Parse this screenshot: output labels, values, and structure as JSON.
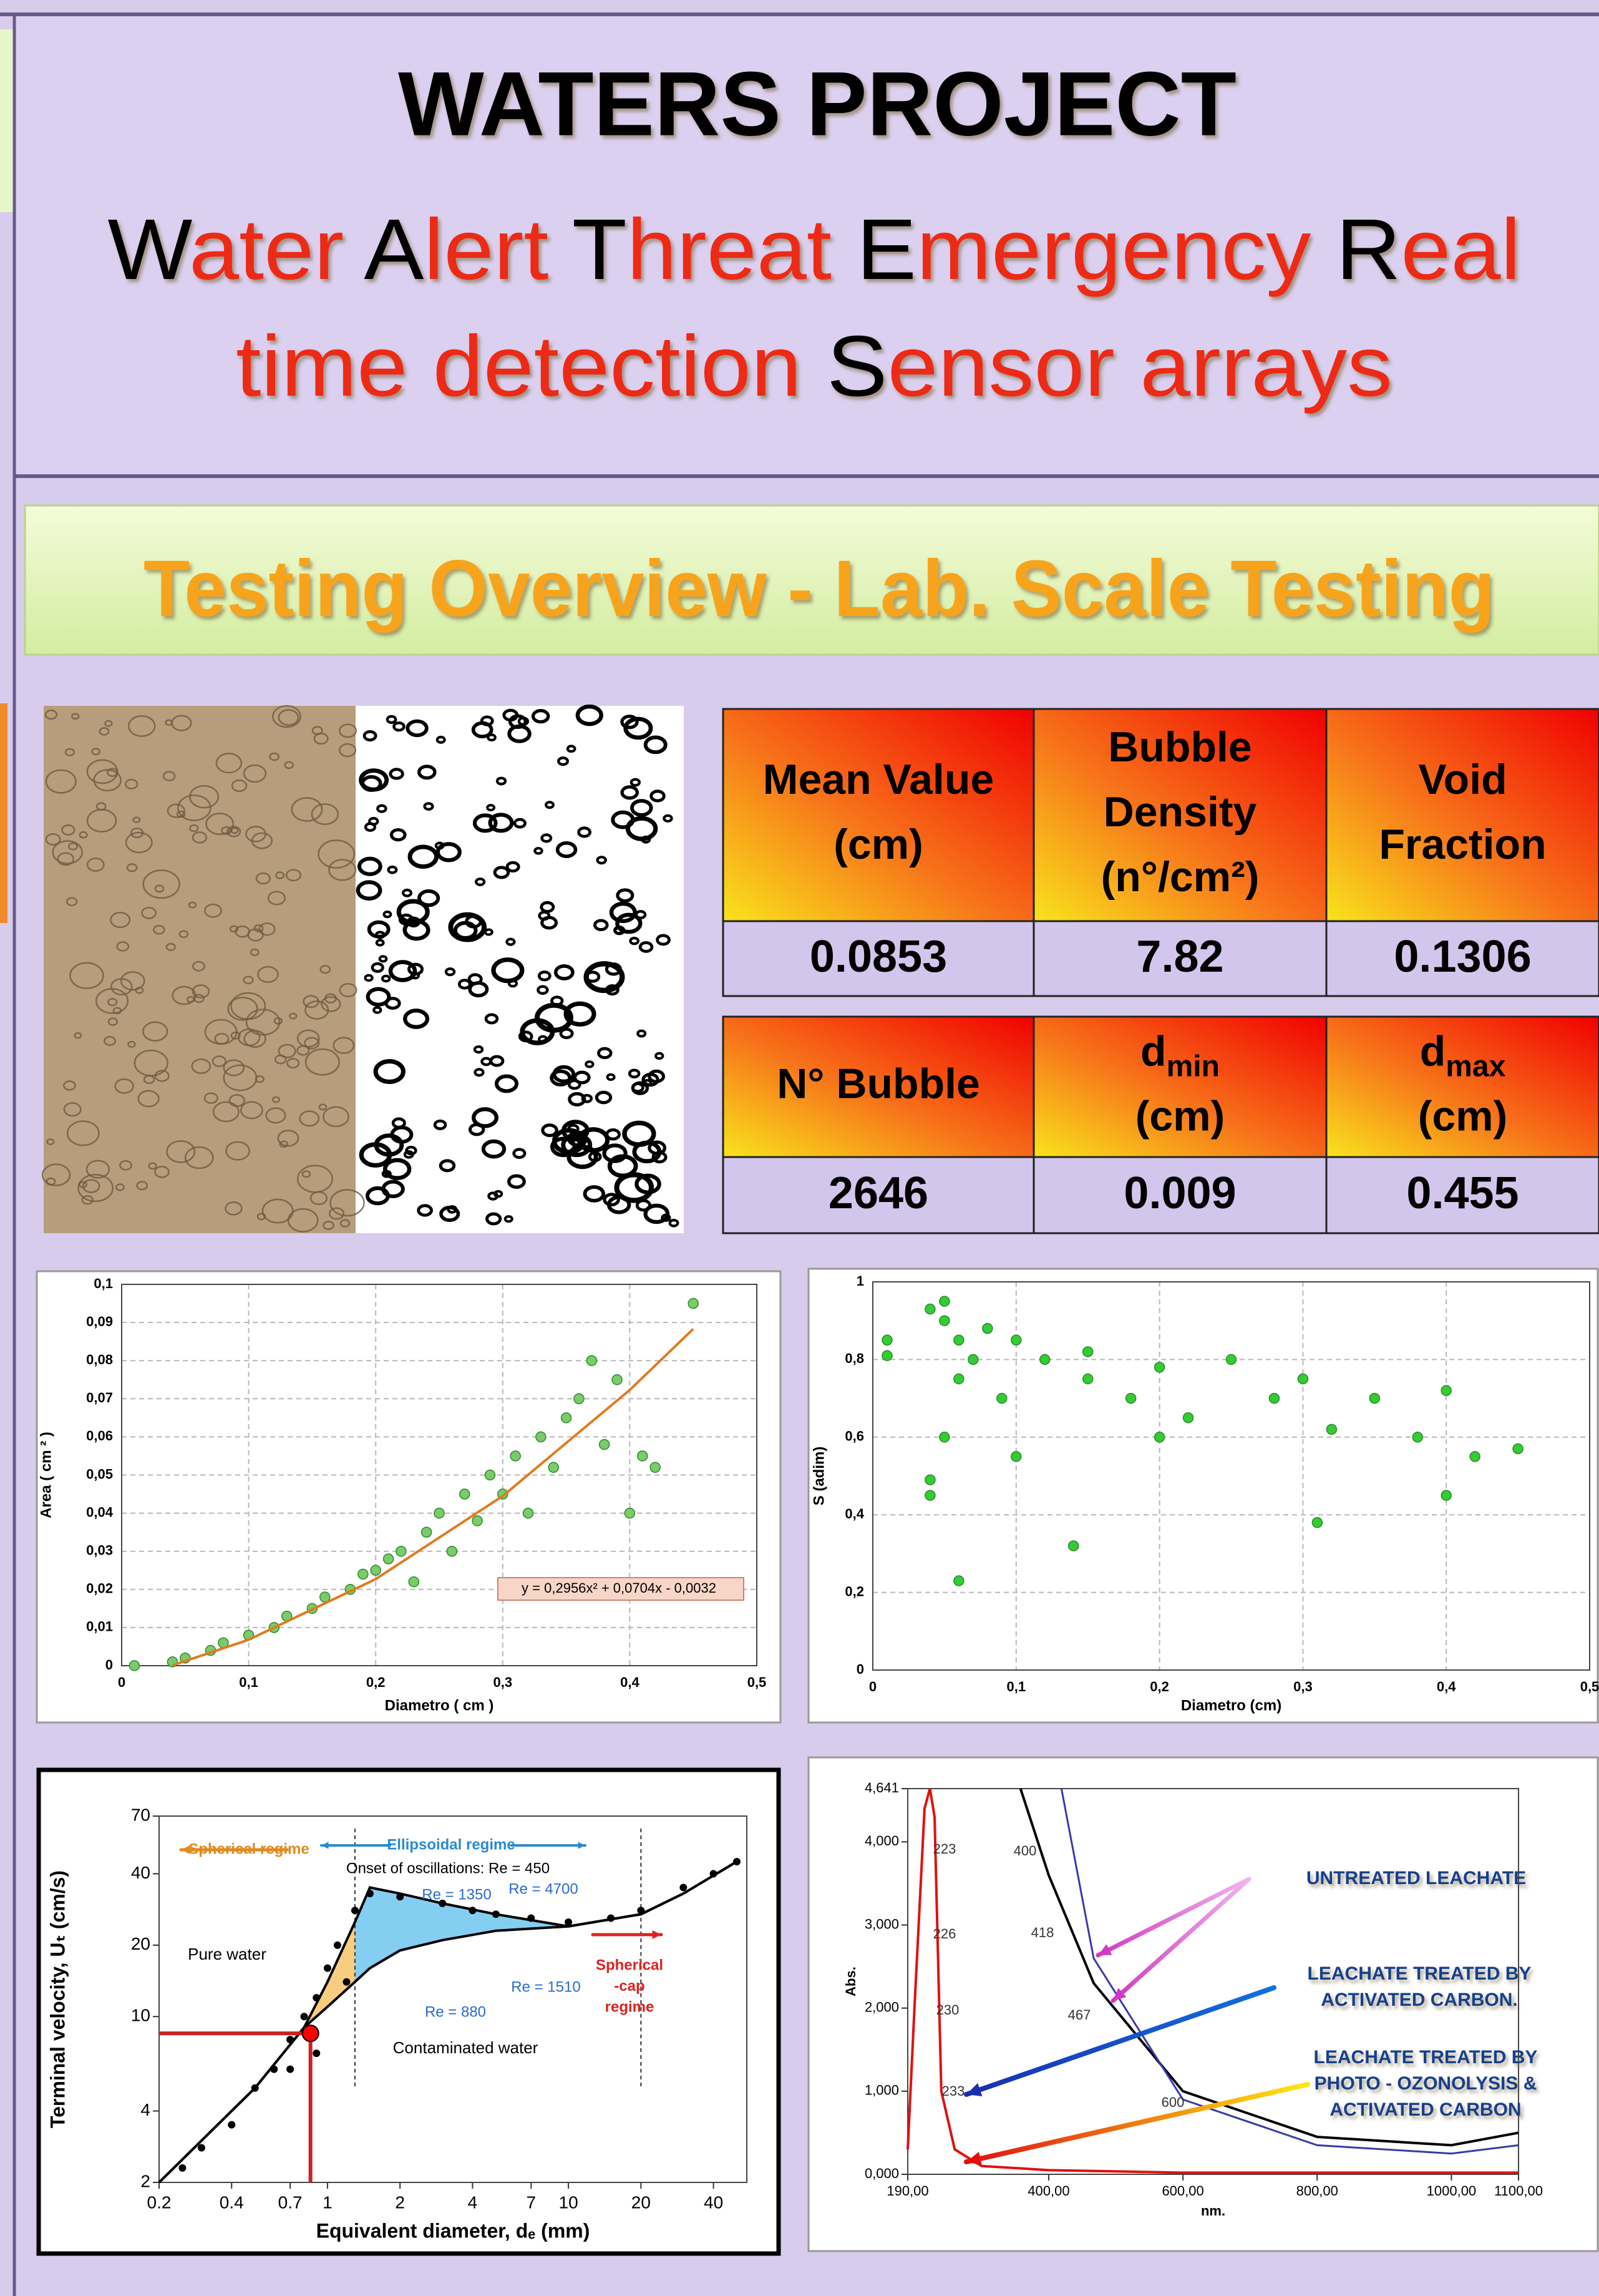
{
  "header": {
    "title": "WATERS PROJECT",
    "subtitle_lines": [
      [
        {
          "text": "W",
          "initial": true
        },
        {
          "text": "ater ",
          "initial": false
        },
        {
          "text": "A",
          "initial": true
        },
        {
          "text": "lert ",
          "initial": false
        },
        {
          "text": "T",
          "initial": true
        },
        {
          "text": "hreat ",
          "initial": false
        },
        {
          "text": "E",
          "initial": true
        },
        {
          "text": "mergency ",
          "initial": false
        },
        {
          "text": "R",
          "initial": true
        },
        {
          "text": "eal",
          "initial": false
        }
      ],
      [
        {
          "text": "time detection ",
          "initial": false
        },
        {
          "text": "S",
          "initial": true
        },
        {
          "text": "ensor arrays",
          "initial": false
        }
      ]
    ]
  },
  "banner": {
    "title": "Testing Overview - Lab. Scale Testing"
  },
  "table": {
    "blocks": [
      {
        "headers": [
          [
            "Mean Value",
            "(cm)"
          ],
          [
            "Bubble",
            "Density",
            "(n°/cm²)"
          ],
          [
            "Void",
            "Fraction"
          ]
        ],
        "values": [
          "0.0853",
          "7.82",
          "0.1306"
        ]
      },
      {
        "headers": [
          [
            "N° Bubble"
          ],
          [
            {
              "main": "d",
              "sub": "min"
            },
            "(cm)"
          ],
          [
            {
              "main": "d",
              "sub": "max"
            },
            "(cm)"
          ]
        ],
        "values": [
          "2646",
          "0.009",
          "0.455"
        ]
      }
    ]
  },
  "chart_data": [
    {
      "type": "scatter",
      "xlabel": "Diametro ( cm )",
      "ylabel": "Area ( cm ² )",
      "grid": true,
      "xlim": [
        0,
        0.5
      ],
      "ylim": [
        0,
        0.1
      ],
      "xticks": [
        0,
        {
          "value": 0.1,
          "label": "0,1"
        },
        {
          "value": 0.2,
          "label": "0,2"
        },
        {
          "value": 0.3,
          "label": "0,3"
        },
        {
          "value": 0.4,
          "label": "0,4"
        },
        {
          "value": 0.5,
          "label": "0,5"
        }
      ],
      "yticks": [
        0,
        {
          "value": 0.01,
          "label": "0,01"
        },
        {
          "value": 0.02,
          "label": "0,02"
        },
        {
          "value": 0.03,
          "label": "0,03"
        },
        {
          "value": 0.04,
          "label": "0,04"
        },
        {
          "value": 0.05,
          "label": "0,05"
        },
        {
          "value": 0.06,
          "label": "0,06"
        },
        {
          "value": 0.07,
          "label": "0,07"
        },
        {
          "value": 0.08,
          "label": "0,08"
        },
        {
          "value": 0.09,
          "label": "0,09"
        },
        {
          "value": 0.1,
          "label": "0,1"
        }
      ],
      "series": [
        {
          "style": "markers",
          "color": "#7ccb6a",
          "x": [
            0.01,
            0.04,
            0.05,
            0.07,
            0.08,
            0.1,
            0.12,
            0.13,
            0.15,
            0.16,
            0.18,
            0.19,
            0.2,
            0.21,
            0.22,
            0.23,
            0.24,
            0.25,
            0.26,
            0.27,
            0.28,
            0.29,
            0.3,
            0.31,
            0.32,
            0.33,
            0.34,
            0.35,
            0.36,
            0.37,
            0.38,
            0.39,
            0.4,
            0.41,
            0.42,
            0.45
          ],
          "values": [
            0,
            0.001,
            0.002,
            0.004,
            0.006,
            0.008,
            0.01,
            0.013,
            0.015,
            0.018,
            0.02,
            0.024,
            0.025,
            0.028,
            0.03,
            0.022,
            0.035,
            0.04,
            0.03,
            0.045,
            0.038,
            0.05,
            0.045,
            0.055,
            0.04,
            0.06,
            0.052,
            0.065,
            0.07,
            0.08,
            0.058,
            0.075,
            0.04,
            0.055,
            0.052,
            0.095
          ]
        },
        {
          "style": "line",
          "color": "#e07b20",
          "x": [
            0.04,
            0.1,
            0.2,
            0.3,
            0.4,
            0.45
          ],
          "values": [
            0.0001,
            0.0068,
            0.0227,
            0.0445,
            0.0723,
            0.0883
          ]
        }
      ],
      "annotations": [
        "y = 0,2956x² + 0,0704x - 0,0032"
      ]
    },
    {
      "type": "scatter",
      "xlabel": "Diametro (cm)",
      "ylabel": "S (adim)",
      "grid": true,
      "xlim": [
        0,
        0.5
      ],
      "ylim": [
        0,
        1
      ],
      "xticks": [
        0,
        {
          "value": 0.1,
          "label": "0,1"
        },
        {
          "value": 0.2,
          "label": "0,2"
        },
        {
          "value": 0.3,
          "label": "0,3"
        },
        {
          "value": 0.4,
          "label": "0,4"
        },
        {
          "value": 0.5,
          "label": "0,5"
        }
      ],
      "yticks": [
        0,
        {
          "value": 0.2,
          "label": "0,2"
        },
        {
          "value": 0.4,
          "label": "0,4"
        },
        {
          "value": 0.6,
          "label": "0,6"
        },
        {
          "value": 0.8,
          "label": "0,8"
        },
        1
      ],
      "series": [
        {
          "style": "markers",
          "color": "#33cc33",
          "x": [
            0.01,
            0.01,
            0.04,
            0.05,
            0.05,
            0.06,
            0.07,
            0.06,
            0.08,
            0.1,
            0.09,
            0.12,
            0.15,
            0.15,
            0.18,
            0.2,
            0.22,
            0.25,
            0.28,
            0.3,
            0.32,
            0.35,
            0.38,
            0.4,
            0.42,
            0.45,
            0.04,
            0.04,
            0.06,
            0.14,
            0.31,
            0.4,
            0.1,
            0.05,
            0.2
          ],
          "values": [
            0.85,
            0.81,
            0.93,
            0.95,
            0.9,
            0.85,
            0.8,
            0.75,
            0.88,
            0.85,
            0.7,
            0.8,
            0.75,
            0.82,
            0.7,
            0.78,
            0.65,
            0.8,
            0.7,
            0.75,
            0.62,
            0.7,
            0.6,
            0.72,
            0.55,
            0.57,
            0.45,
            0.49,
            0.23,
            0.32,
            0.38,
            0.45,
            0.55,
            0.6,
            0.6
          ]
        }
      ],
      "annotations": []
    },
    {
      "type": "line",
      "xscale": "log",
      "yscale": "log",
      "xlabel": "Equivalent diameter, dₑ (mm)",
      "ylabel": "Terminal velocity, Uₜ (cm/s)",
      "grid": false,
      "xlim": [
        0.2,
        55
      ],
      "ylim": [
        2,
        70
      ],
      "xticks": [
        0.2,
        0.4,
        0.7,
        1,
        2,
        4,
        7,
        10,
        20,
        40
      ],
      "yticks": [
        2,
        4,
        10,
        20,
        40,
        70
      ],
      "series": [
        {
          "style": "line",
          "color": "#000000",
          "x": [
            0.2,
            0.5,
            0.8,
            1,
            1.3,
            1.5,
            2,
            3,
            5,
            10,
            20,
            30,
            50
          ],
          "values": [
            2,
            5,
            9,
            14,
            25,
            35,
            33,
            30,
            27,
            24,
            27,
            33,
            45
          ]
        },
        {
          "style": "line",
          "color": "#000000",
          "x": [
            0.2,
            0.5,
            0.8,
            1,
            1.3,
            1.5,
            2,
            3,
            5,
            10,
            20,
            30,
            50
          ],
          "values": [
            2,
            5,
            9,
            11,
            14,
            16,
            19,
            21,
            23,
            24,
            27,
            33,
            45
          ]
        },
        {
          "style": "markers",
          "color": "#000000",
          "x": [
            0.25,
            0.3,
            0.4,
            0.5,
            0.6,
            0.7,
            0.8,
            0.9,
            1,
            1.1,
            1.3,
            1.5,
            2,
            3,
            4,
            5,
            7,
            10,
            15,
            20,
            30,
            40,
            50,
            0.7,
            0.9,
            1.2
          ],
          "values": [
            2.3,
            2.8,
            3.5,
            5,
            6,
            8,
            10,
            12,
            16,
            20,
            28,
            33,
            32,
            30,
            28,
            27,
            26,
            25,
            26,
            28,
            35,
            40,
            45,
            6,
            7,
            14
          ]
        },
        {
          "style": "markers",
          "color": "#ff0000",
          "x": [
            0.85
          ],
          "values": [
            8.5
          ]
        }
      ],
      "annotations": [
        "Spherical regime",
        "Ellipsoidal regime",
        "Onset of oscillations: Re = 450",
        "Re = 1350",
        "Re = 4700",
        "Pure water",
        "Re = 880",
        "Re = 1510",
        [
          "Spherical",
          "-cap",
          "regime"
        ],
        "Contaminated water"
      ]
    },
    {
      "type": "line",
      "xlabel": "nm.",
      "ylabel": "Abs.",
      "grid": false,
      "xlim": [
        190,
        1100
      ],
      "ylim": [
        0,
        4.641
      ],
      "xticks": [
        {
          "value": 190,
          "label": "190,00"
        },
        {
          "value": 400,
          "label": "400,00"
        },
        {
          "value": 600,
          "label": "600,00"
        },
        {
          "value": 800,
          "label": "800,00"
        },
        {
          "value": 1000,
          "label": "1000,00"
        },
        {
          "value": 1100,
          "label": "1100,00"
        }
      ],
      "yticks": [
        {
          "value": 0,
          "label": "0,000"
        },
        {
          "value": 1,
          "label": "1,000"
        },
        {
          "value": 2,
          "label": "2,000"
        },
        {
          "value": 3,
          "label": "3,000"
        },
        {
          "value": 4,
          "label": "4,000"
        },
        {
          "value": 4.641,
          "label": "4,641"
        }
      ],
      "series": [
        {
          "style": "line",
          "color": "#000000",
          "x": [
            358,
            400,
            467,
            600,
            800,
            1000,
            1100
          ],
          "values": [
            4.641,
            3.6,
            2.3,
            1.0,
            0.45,
            0.35,
            0.5
          ]
        },
        {
          "style": "line",
          "color": "#3a3aa8",
          "x": [
            419,
            467,
            600,
            800,
            1000,
            1100
          ],
          "values": [
            4.641,
            2.6,
            0.9,
            0.35,
            0.25,
            0.35
          ]
        },
        {
          "style": "line",
          "color": "#e01010",
          "x": [
            190,
            200,
            215,
            223,
            230,
            240,
            260,
            300,
            400,
            600,
            1100
          ],
          "values": [
            0.3,
            2,
            4.4,
            4.641,
            4.3,
            1.0,
            0.3,
            0.1,
            0.05,
            0.02,
            0.02
          ]
        }
      ],
      "annotations": [
        "223",
        "226",
        "230",
        "233",
        "400",
        "418",
        "467",
        "600",
        [
          "UNTREATED LEACHATE"
        ],
        [
          "LEACHATE TREATED BY",
          "ACTIVATED CARBON."
        ],
        [
          "LEACHATE TREATED BY",
          "PHOTO - OZONOLYSIS &",
          "ACTIVATED CARBON"
        ]
      ]
    }
  ]
}
